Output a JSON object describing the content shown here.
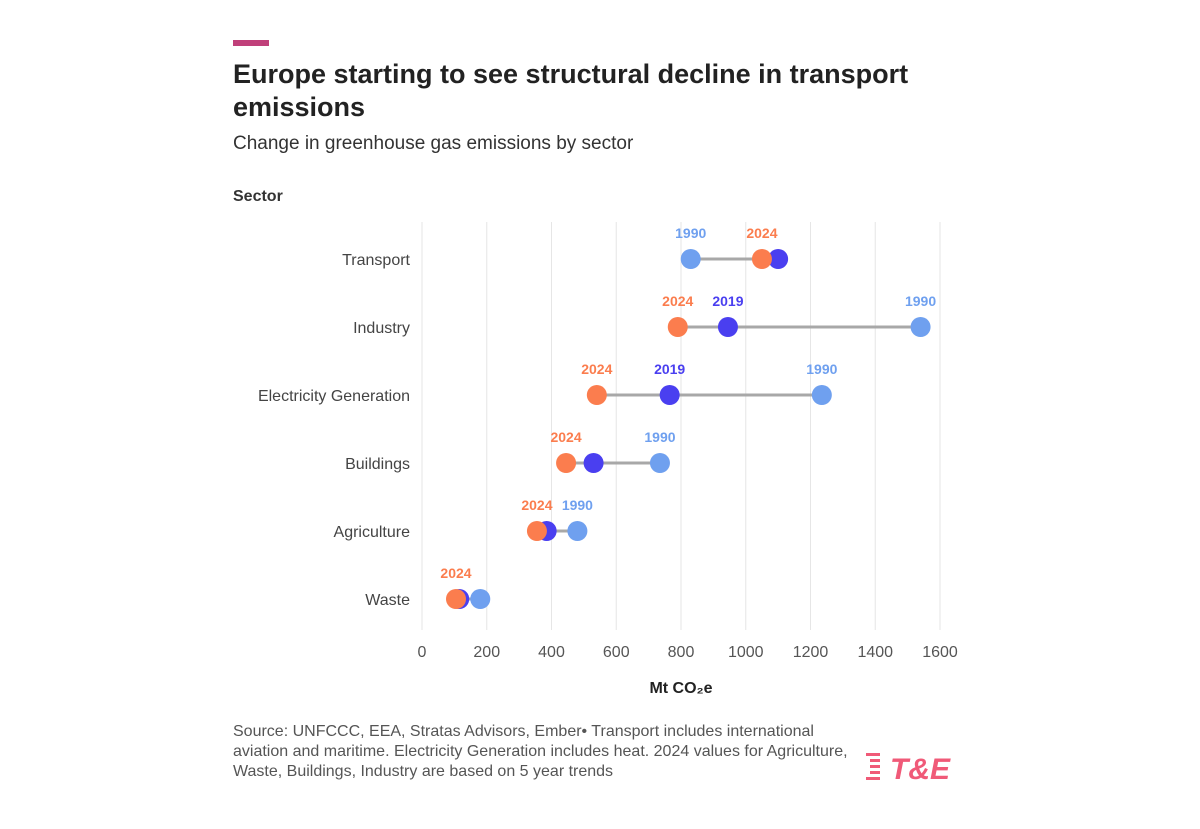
{
  "header": {
    "title": "Europe starting to see structural decline in transport emissions",
    "subtitle": "Change in greenhouse gas emissions by sector",
    "accent_color": "#c0407a"
  },
  "footer": {
    "source": "Source: UNFCCC, EEA, Stratas Advisors, Ember• Transport includes international aviation and maritime. Electricity Generation includes heat. 2024 values for Agriculture, Waste, Buildings, Industry are based on 5 year trends",
    "logo_text": "T&E",
    "logo_color": "#f05a78"
  },
  "chart_data": {
    "type": "dumbbell",
    "ylabel": "Sector",
    "xlabel": "Mt CO₂e",
    "xlim": [
      0,
      1600
    ],
    "xticks": [
      0,
      200,
      400,
      600,
      800,
      1000,
      1200,
      1400,
      1600
    ],
    "grid": "vertical",
    "categories": [
      "Transport",
      "Industry",
      "Electricity Generation",
      "Buildings",
      "Agriculture",
      "Waste"
    ],
    "series": [
      {
        "name": "1990",
        "color": "#6fa0ef",
        "values": [
          830,
          1540,
          1235,
          735,
          480,
          180
        ]
      },
      {
        "name": "2019",
        "color": "#4a3ff0",
        "values": [
          1100,
          945,
          765,
          530,
          385,
          115
        ]
      },
      {
        "name": "2024",
        "color": "#fb7d4e",
        "values": [
          1050,
          790,
          540,
          445,
          355,
          105
        ]
      }
    ],
    "point_labels": [
      {
        "category": "Transport",
        "labels": [
          {
            "year": "1990",
            "value": 830
          },
          {
            "year": "2024",
            "value": 1050
          }
        ]
      },
      {
        "category": "Industry",
        "labels": [
          {
            "year": "2024",
            "value": 790
          },
          {
            "year": "2019",
            "value": 945
          },
          {
            "year": "1990",
            "value": 1540
          }
        ]
      },
      {
        "category": "Electricity Generation",
        "labels": [
          {
            "year": "2024",
            "value": 540
          },
          {
            "year": "2019",
            "value": 765
          },
          {
            "year": "1990",
            "value": 1235
          }
        ]
      },
      {
        "category": "Buildings",
        "labels": [
          {
            "year": "2024",
            "value": 445
          },
          {
            "year": "1990",
            "value": 735
          }
        ]
      },
      {
        "category": "Agriculture",
        "labels": [
          {
            "year": "2024",
            "value": 355
          },
          {
            "year": "1990",
            "value": 480
          }
        ]
      },
      {
        "category": "Waste",
        "labels": [
          {
            "year": "2024",
            "value": 105
          }
        ]
      }
    ],
    "connector_color": "#a8a8a8",
    "grid_color": "#e6e6e6"
  }
}
